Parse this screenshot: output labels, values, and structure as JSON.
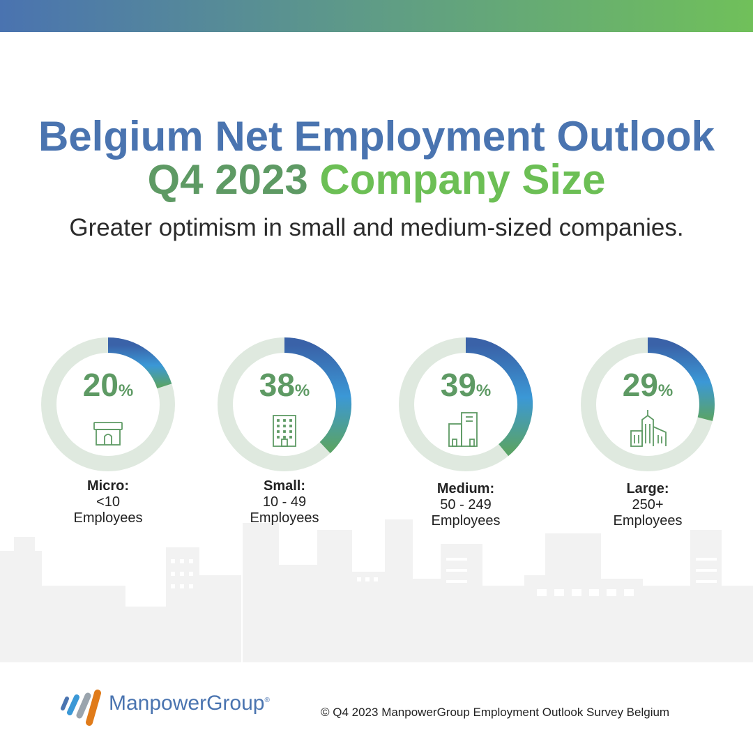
{
  "title_line1": "Belgium Net Employment Outlook",
  "title_line2_a": "Q4 2023",
  "title_line2_b": "Company Size",
  "subtitle": "Greater optimism in small and medium-sized companies.",
  "colors": {
    "title_blue": "#4a74b0",
    "title_green_dark": "#5e9a64",
    "title_green_light": "#6cbf55",
    "ring_track": "#dfe9df",
    "ring_fill_start": "#3a62a8",
    "ring_fill_mid": "#3b98d6",
    "ring_fill_end": "#5aa368",
    "value_green": "#5e9a64"
  },
  "chart_data": {
    "type": "donut",
    "unit": "%",
    "items": [
      {
        "value": 20,
        "category": "Micro:",
        "range": "<10",
        "sub": "Employees",
        "icon": "storefront-icon"
      },
      {
        "value": 38,
        "category": "Small:",
        "range": "10 - 49",
        "sub": "Employees",
        "icon": "office-building-icon"
      },
      {
        "value": 39,
        "category": "Medium:",
        "range": "50 - 249",
        "sub": "Employees",
        "icon": "two-buildings-icon"
      },
      {
        "value": 29,
        "category": "Large:",
        "range": "250+",
        "sub": "Employees",
        "icon": "city-buildings-icon"
      }
    ]
  },
  "footer": {
    "brand": "ManpowerGroup",
    "registered": "®",
    "copyright": "© Q4 2023 ManpowerGroup Employment Outlook Survey Belgium"
  }
}
